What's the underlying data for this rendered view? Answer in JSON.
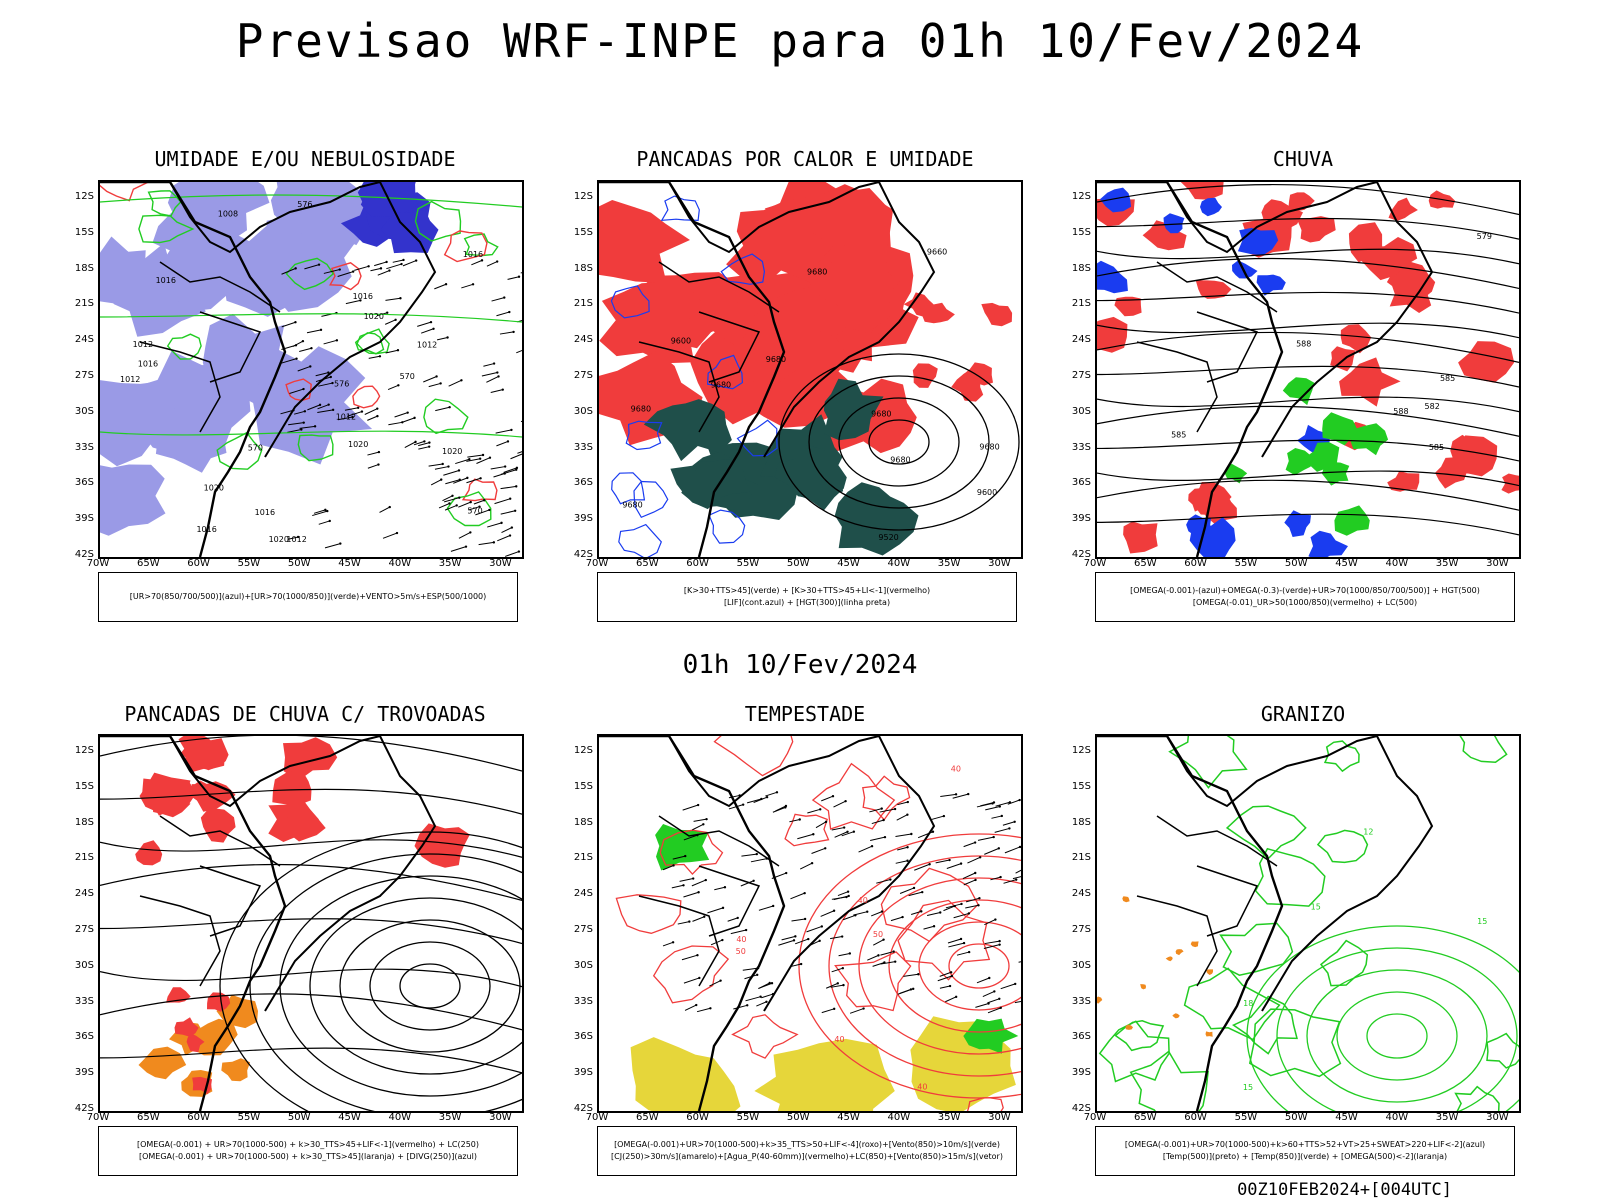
{
  "title": "Previsao WRF-INPE  para 01h 10/Fev/2024",
  "subtitle": "01h 10/Fev/2024",
  "footer": "00Z10FEB2024+[004UTC]",
  "lat_labels": [
    "12S",
    "15S",
    "18S",
    "21S",
    "24S",
    "27S",
    "30S",
    "33S",
    "36S",
    "39S",
    "42S"
  ],
  "lon_labels": [
    "70W",
    "65W",
    "60W",
    "55W",
    "50W",
    "45W",
    "40W",
    "35W",
    "30W"
  ],
  "panels": [
    {
      "title": "UMIDADE E/OU NEBULOSIDADE",
      "legend": [
        "[UR>70(850/700/500)](azul)+[UR>70(1000/850)](verde)+VENTO>5m/s+ESP(500/1000)"
      ],
      "contour_labels": [
        "1012",
        "1012",
        "1012",
        "1016",
        "1016",
        "1016",
        "1016",
        "1020",
        "1020",
        "1008",
        "1012",
        "1016",
        "1020",
        "1020",
        "1020",
        "1012",
        "1016",
        "570",
        "576",
        "570",
        "570",
        "576"
      ]
    },
    {
      "title": "PANCADAS POR CALOR E UMIDADE",
      "legend": [
        "[K>30+TTS>45](verde) + [K>30+TTS>45+LI<-1](vermelho)",
        "[LIF](cont.azul) + [HGT(300)](linha preta)"
      ],
      "contour_labels": [
        "9680",
        "9680",
        "9660",
        "9680",
        "9680",
        "9680",
        "9600",
        "9680",
        "9680",
        "9680",
        "9600",
        "9520"
      ]
    },
    {
      "title": "CHUVA",
      "legend": [
        "[OMEGA(-0.001)-(azul)+OMEGA(-0.3)-(verde)+UR>70(1000/850/700/500)] + HGT(500)",
        "[OMEGA(-0.01)_UR>50(1000/850)(vermelho) + LC(500)"
      ],
      "contour_labels": [
        "588",
        "585",
        "585",
        "582",
        "579",
        "585",
        "588"
      ]
    },
    {
      "title": "PANCADAS DE CHUVA C/ TROVOADAS",
      "legend": [
        "[OMEGA(-0.001) + UR>70(1000-500) + k>30_TTS>45+LIF<-1](vermelho) + LC(250)",
        "[OMEGA(-0.001) + UR>70(1000-500) + k>30_TTS>45](laranja) + [DIVG(250)](azul)"
      ],
      "contour_labels": []
    },
    {
      "title": "TEMPESTADE",
      "legend": [
        "[OMEGA(-0.001)+UR>70(1000-500)+k>35_TTS>50+LIF<-4](roxo)+[Vento(850)>10m/s](verde)",
        "[CJ(250)>30m/s](amarelo)+[Agua_P(40-60mm)](vermelho)+LC(850)+[Vento(850)>15m/s](vetor)"
      ],
      "contour_labels": [
        "40",
        "40",
        "40",
        "50",
        "40",
        "40",
        "50"
      ]
    },
    {
      "title": "GRANIZO",
      "legend": [
        "[OMEGA(-0.001)+UR>70(1000-500)+k>60+TTS>52+VT>25+SWEAT>220+LIF<-2](azul)",
        "[Temp(500)](preto) + [Temp(850)](verde) + [OMEGA(500)<-2](laranja)"
      ],
      "contour_labels": [
        "15",
        "15",
        "12",
        "15",
        "18"
      ]
    }
  ],
  "colors": {
    "blue_fill": "#9a9ae6",
    "dark_blue": "#3333cc",
    "green": "#22cc22",
    "red": "#f03c3c",
    "dark_teal": "#1f4f4a",
    "orange": "#f08a1e",
    "yellow": "#e6d63a",
    "blue": "#1a3cf0"
  }
}
